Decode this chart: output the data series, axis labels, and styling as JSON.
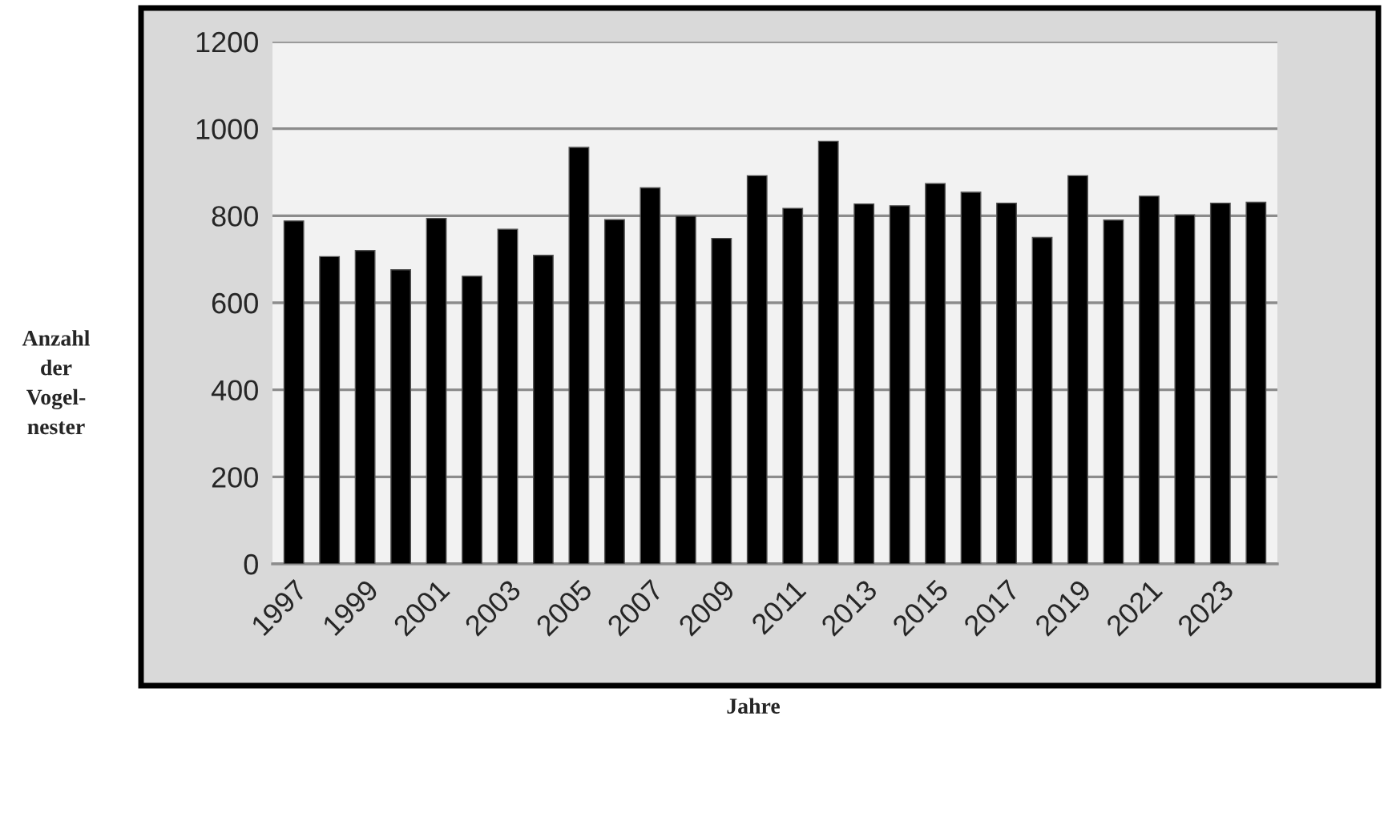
{
  "chart_data": {
    "type": "bar",
    "xlabel": "Jahre",
    "ylabel": "Anzahl\nder\nVogel-\nnester",
    "categories": [
      "1997",
      null,
      "1999",
      null,
      "2001",
      null,
      "2003",
      null,
      "2005",
      null,
      "2007",
      null,
      "2009",
      null,
      "2011",
      null,
      "2013",
      null,
      "2015",
      null,
      "2017",
      null,
      "2019",
      null,
      "2021",
      null,
      "2023",
      null
    ],
    "values": [
      788,
      706,
      720,
      676,
      794,
      661,
      769,
      709,
      957,
      791,
      864,
      799,
      748,
      892,
      817,
      971,
      827,
      823,
      874,
      854,
      829,
      750,
      892,
      790,
      845,
      802,
      829,
      831
    ],
    "color": "#000000",
    "ylim": [
      0,
      1200
    ],
    "yticks": [
      0,
      200,
      400,
      600,
      800,
      1000,
      1200
    ],
    "grid": "y"
  }
}
